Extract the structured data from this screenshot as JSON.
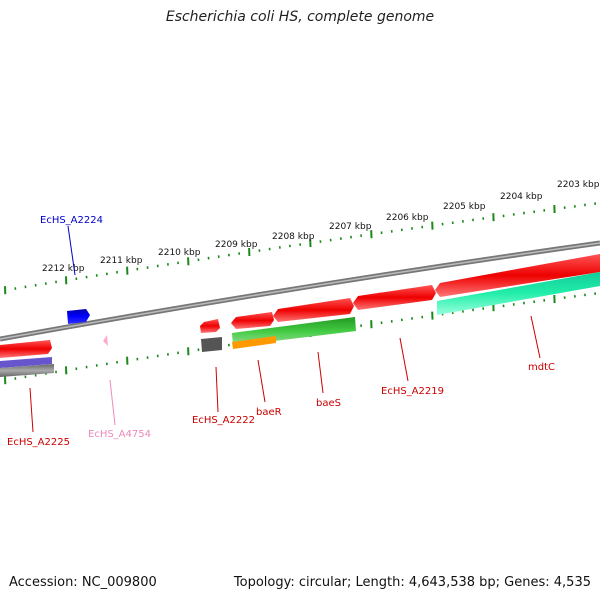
{
  "title": "Escherichia coli HS, complete genome",
  "footer": {
    "accession": "Accession: NC_009800",
    "summary": "Topology: circular; Length: 4,643,538 bp; Genes: 4,535"
  },
  "scale_labels": [
    "2212 kbp",
    "2211 kbp",
    "2210 kbp",
    "2209 kbp",
    "2208 kbp",
    "2207 kbp",
    "2206 kbp",
    "2205 kbp",
    "2204 kbp",
    "2203 kbp"
  ],
  "gene_labels": [
    {
      "text": "EcHS_A2224",
      "color": "#0000cc"
    },
    {
      "text": "EcHS_A2225",
      "color": "#cc0000"
    },
    {
      "text": "EcHS_A4754",
      "color": "#ee88bb"
    },
    {
      "text": "EcHS_A2222",
      "color": "#cc0000"
    },
    {
      "text": "baeR",
      "color": "#cc0000"
    },
    {
      "text": "baeS",
      "color": "#cc0000"
    },
    {
      "text": "EcHS_A2219",
      "color": "#cc0000"
    },
    {
      "text": "mdtC",
      "color": "#cc0000"
    }
  ],
  "colors": {
    "cds": "#ee0000",
    "backbone": "#888888",
    "ticks": "#1a8a1a",
    "blue_feature": "#0000ee",
    "green_feature": "#33bb33",
    "teal_feature": "#22eeaa",
    "orange_feature": "#ff9900",
    "grey_feature": "#555555",
    "purple_feature": "#6655cc"
  }
}
